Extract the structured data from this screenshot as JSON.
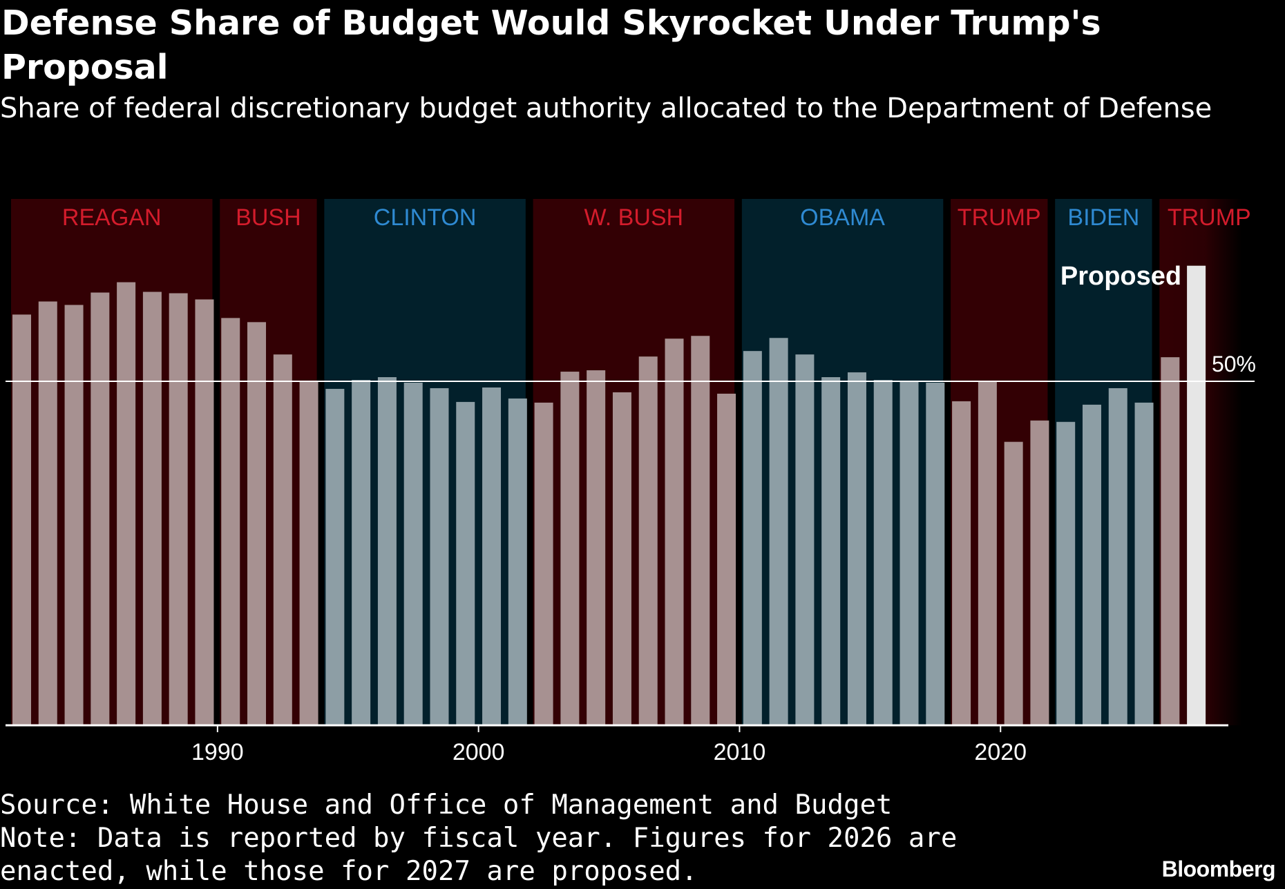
{
  "title": "Defense Share of Budget Would Skyrocket Under Trump's Proposal",
  "subtitle": "Share of federal discretionary budget authority allocated to the Department of Defense",
  "source": "Source: White House and Office of Management and Budget",
  "note": "Note: Data is reported by fiscal year. Figures for 2026 are enacted, while those for 2027 are proposed.",
  "brand": "Bloomberg",
  "chart_data": {
    "type": "bar",
    "title": "Defense Share of Budget Would Skyrocket Under Trump's Proposal",
    "xlabel": "",
    "ylabel": "",
    "unit": "%",
    "ylim": [
      0,
      100
    ],
    "x_ticks": [
      1990,
      2000,
      2010,
      2020
    ],
    "reference_line": {
      "value": 50,
      "label": "50%"
    },
    "years": [
      1982,
      1983,
      1984,
      1985,
      1986,
      1987,
      1988,
      1989,
      1990,
      1991,
      1992,
      1993,
      1994,
      1995,
      1996,
      1997,
      1998,
      1999,
      2000,
      2001,
      2002,
      2003,
      2004,
      2005,
      2006,
      2007,
      2008,
      2009,
      2010,
      2011,
      2012,
      2013,
      2014,
      2015,
      2016,
      2017,
      2018,
      2019,
      2020,
      2021,
      2022,
      2023,
      2024,
      2025,
      2026,
      2027
    ],
    "values": [
      59.7,
      61.6,
      61.1,
      62.9,
      64.4,
      63.0,
      62.8,
      61.9,
      59.2,
      58.6,
      53.9,
      50.0,
      48.9,
      50.2,
      50.6,
      49.8,
      49.0,
      47.0,
      49.1,
      47.5,
      46.9,
      51.4,
      51.6,
      48.4,
      53.6,
      56.2,
      56.6,
      48.2,
      54.4,
      56.3,
      53.9,
      50.6,
      51.3,
      50.2,
      49.9,
      49.8,
      47.1,
      50.0,
      41.2,
      44.3,
      44.1,
      46.6,
      49.0,
      46.9,
      53.5,
      66.8
    ],
    "proposed_annotation": "Proposed",
    "administrations": [
      {
        "name": "REAGAN",
        "party": "R",
        "start": 1982,
        "end": 1989
      },
      {
        "name": "BUSH",
        "party": "R",
        "start": 1990,
        "end": 1993
      },
      {
        "name": "CLINTON",
        "party": "D",
        "start": 1994,
        "end": 2001
      },
      {
        "name": "W. BUSH",
        "party": "R",
        "start": 2002,
        "end": 2009
      },
      {
        "name": "OBAMA",
        "party": "D",
        "start": 2010,
        "end": 2017
      },
      {
        "name": "TRUMP",
        "party": "R",
        "start": 2018,
        "end": 2021
      },
      {
        "name": "BIDEN",
        "party": "D",
        "start": 2022,
        "end": 2025
      },
      {
        "name": "TRUMP",
        "party": "R",
        "start": 2026,
        "end": 2027
      }
    ]
  },
  "colors": {
    "republican_band": "#330004",
    "democrat_band": "#02202b",
    "republican_label": "#d41c2c",
    "democrat_label": "#2f8ad2",
    "republican_bar": "#a79191",
    "democrat_bar": "#8d9ea5",
    "proposed_bar": "#e6e6e6",
    "axis": "#ffffff",
    "reference_line": "#ffffff"
  }
}
